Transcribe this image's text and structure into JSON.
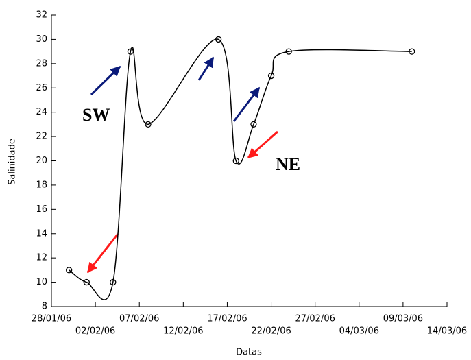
{
  "chart_data": {
    "type": "line",
    "x_label": "Datas",
    "y_label": "Salinidade",
    "x": [
      "30/01/06",
      "01/02/06",
      "04/02/06",
      "06/02/06",
      "08/02/06",
      "16/02/06",
      "18/02/06",
      "20/02/06",
      "22/02/06",
      "24/02/06",
      "10/03/06"
    ],
    "values": [
      11,
      10,
      10,
      29,
      23,
      30,
      20,
      23,
      27,
      29,
      29
    ],
    "color": "#000000",
    "xlim": [
      "28/01/06",
      "14/03/06"
    ],
    "xticks": [
      "28/01/06",
      "02/02/06",
      "07/02/06",
      "12/02/06",
      "17/02/06",
      "22/02/06",
      "27/02/06",
      "04/03/06",
      "09/03/06",
      "14/03/06"
    ],
    "ylim": [
      8,
      32
    ],
    "yticks": [
      8,
      10,
      12,
      14,
      16,
      18,
      20,
      22,
      24,
      26,
      28,
      30,
      32
    ],
    "annotations": [
      "SW",
      "NE"
    ]
  }
}
